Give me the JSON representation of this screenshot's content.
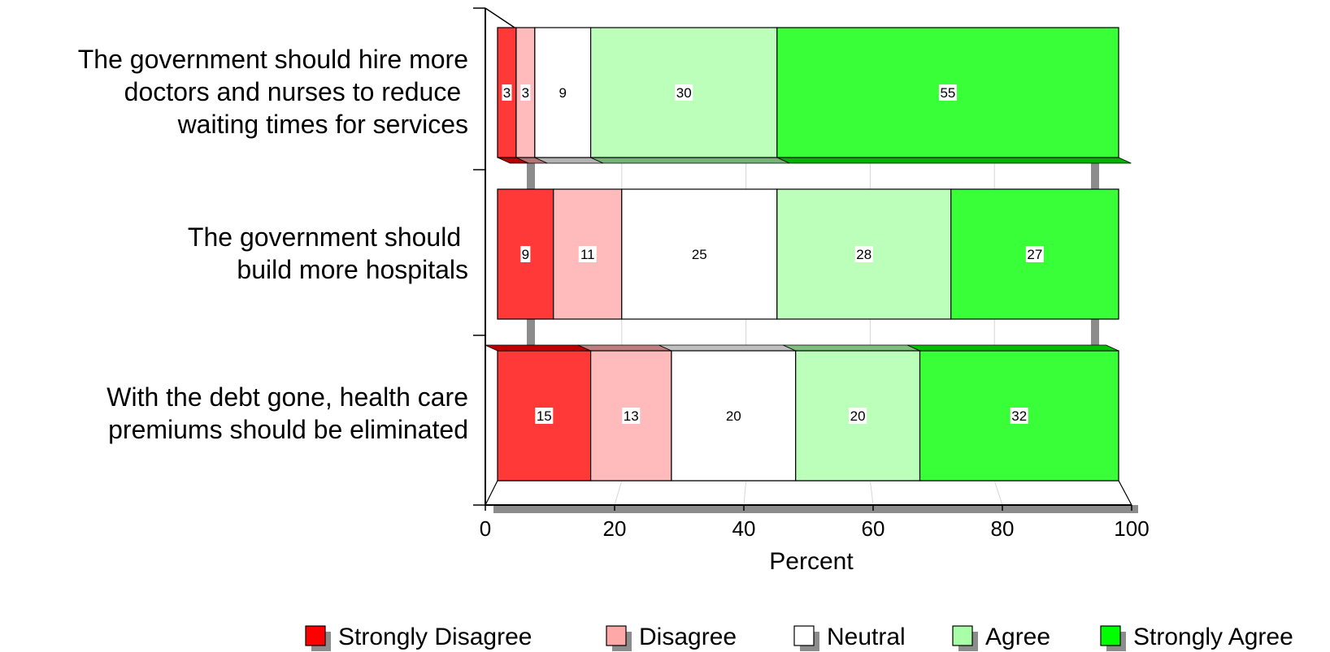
{
  "chart_data": {
    "type": "bar",
    "orientation": "horizontal",
    "stacked": true,
    "categories": [
      [
        "The government should hire more",
        "doctors and nurses to reduce ",
        "waiting times for services"
      ],
      [
        "The government should ",
        "build more hospitals"
      ],
      [
        "With the debt gone, health care",
        "premiums should be eliminated"
      ]
    ],
    "series": [
      {
        "name": "Strongly Disagree",
        "color": "#ff0000",
        "values": [
          3,
          9,
          15
        ]
      },
      {
        "name": "Disagree",
        "color": "#ffa8a8",
        "values": [
          3,
          11,
          13
        ]
      },
      {
        "name": "Neutral",
        "color": "#ffffff",
        "values": [
          9,
          25,
          20
        ]
      },
      {
        "name": "Agree",
        "color": "#a8ffa8",
        "values": [
          30,
          28,
          20
        ]
      },
      {
        "name": "Strongly Agree",
        "color": "#00ff00",
        "values": [
          55,
          27,
          32
        ]
      }
    ],
    "xlabel": "Percent",
    "xlim": [
      0,
      100
    ],
    "xticks": [
      "0",
      "20",
      "40",
      "60",
      "80",
      "100"
    ],
    "grid": true,
    "legend_position": "bottom"
  }
}
